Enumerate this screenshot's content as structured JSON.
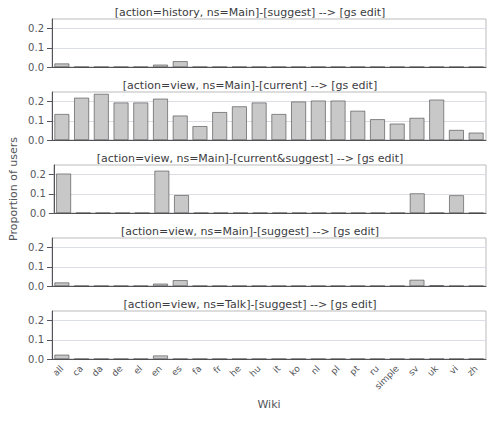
{
  "chart_data": [
    {
      "type": "bar",
      "title": "[action=history, ns=Main]-[suggest] --> [gs edit]",
      "categories": [
        "all",
        "ca",
        "da",
        "de",
        "el",
        "en",
        "es",
        "fa",
        "fr",
        "he",
        "hu",
        "it",
        "ko",
        "nl",
        "pl",
        "pt",
        "ru",
        "simple",
        "sv",
        "uk",
        "vi",
        "zh"
      ],
      "values": [
        0.018,
        0.0,
        0.0,
        0.0,
        0.0,
        0.012,
        0.03,
        0.0,
        0.0,
        0.0,
        0.0,
        0.0,
        0.0,
        0.0,
        0.0,
        0.0,
        0.0,
        0.0,
        0.0,
        0.0,
        0.0,
        0.0
      ],
      "color": "#c8c8c8",
      "ylim": [
        0.0,
        0.25
      ],
      "yticks": [
        {
          "value": 0.0,
          "label": "0.0"
        },
        0.1,
        0.2
      ],
      "grid": true,
      "tick_labels": "y"
    },
    {
      "type": "bar",
      "title": "[action=view, ns=Main]-[current] --> [gs edit]",
      "categories": [
        "all",
        "ca",
        "da",
        "de",
        "el",
        "en",
        "es",
        "fa",
        "fr",
        "he",
        "hu",
        "it",
        "ko",
        "nl",
        "pl",
        "pt",
        "ru",
        "simple",
        "sv",
        "uk",
        "vi",
        "zh"
      ],
      "values": [
        0.135,
        0.22,
        0.24,
        0.195,
        0.195,
        0.215,
        0.127,
        0.072,
        0.145,
        0.175,
        0.195,
        0.135,
        0.2,
        0.205,
        0.205,
        0.152,
        0.108,
        0.085,
        0.115,
        0.21,
        0.052,
        0.038
      ],
      "color": "#c8c8c8",
      "ylim": [
        0.0,
        0.25
      ],
      "yticks": [
        {
          "value": 0.0,
          "label": "0.0"
        },
        0.1,
        0.2
      ],
      "grid": true,
      "tick_labels": "y"
    },
    {
      "type": "bar",
      "title": "[action=view, ns=Main]-[current&suggest] --> [gs edit]",
      "ylabel": "Proportion of users",
      "categories": [
        "all",
        "ca",
        "da",
        "de",
        "el",
        "en",
        "es",
        "fa",
        "fr",
        "he",
        "hu",
        "it",
        "ko",
        "nl",
        "pl",
        "pt",
        "ru",
        "simple",
        "sv",
        "uk",
        "vi",
        "zh"
      ],
      "values": [
        0.205,
        0.0,
        0.0,
        0.0,
        0.0,
        0.22,
        0.093,
        0.0,
        0.0,
        0.0,
        0.0,
        0.0,
        0.0,
        0.0,
        0.0,
        0.0,
        0.0,
        0.0,
        0.102,
        0.0,
        0.092,
        0.0
      ],
      "color": "#c8c8c8",
      "ylim": [
        0.0,
        0.25
      ],
      "yticks": [
        {
          "value": 0.0,
          "label": "0.0"
        },
        0.1,
        0.2
      ],
      "grid": true,
      "tick_labels": "y"
    },
    {
      "type": "bar",
      "title": "[action=view, ns=Main]-[suggest] --> [gs edit]",
      "categories": [
        "all",
        "ca",
        "da",
        "de",
        "el",
        "en",
        "es",
        "fa",
        "fr",
        "he",
        "hu",
        "it",
        "ko",
        "nl",
        "pl",
        "pt",
        "ru",
        "simple",
        "sv",
        "uk",
        "vi",
        "zh"
      ],
      "values": [
        0.018,
        0.0,
        0.0,
        0.0,
        0.0,
        0.012,
        0.03,
        0.0,
        0.0,
        0.0,
        0.0,
        0.0,
        0.0,
        0.0,
        0.0,
        0.0,
        0.0,
        0.0,
        0.032,
        0.003,
        0.0,
        0.0
      ],
      "color": "#c8c8c8",
      "ylim": [
        0.0,
        0.25
      ],
      "yticks": [
        {
          "value": 0.0,
          "label": "0.0"
        },
        0.1,
        0.2
      ],
      "grid": true,
      "tick_labels": "y"
    },
    {
      "type": "bar",
      "title": "[action=view, ns=Talk]-[suggest] --> [gs edit]",
      "xlabel": "Wiki",
      "categories": [
        "all",
        "ca",
        "da",
        "de",
        "el",
        "en",
        "es",
        "fa",
        "fr",
        "he",
        "hu",
        "it",
        "ko",
        "nl",
        "pl",
        "pt",
        "ru",
        "simple",
        "sv",
        "uk",
        "vi",
        "zh"
      ],
      "values": [
        0.022,
        0.0,
        0.0,
        0.0,
        0.0,
        0.018,
        0.0,
        0.0,
        0.0,
        0.0,
        0.0,
        0.0,
        0.0,
        0.0,
        0.0,
        0.0,
        0.0,
        0.0,
        0.0,
        0.0,
        0.0,
        0.0
      ],
      "color": "#c8c8c8",
      "ylim": [
        0.0,
        0.25
      ],
      "yticks": [
        {
          "value": 0.0,
          "label": "0.0"
        },
        0.1,
        0.2
      ],
      "grid": true
    }
  ]
}
